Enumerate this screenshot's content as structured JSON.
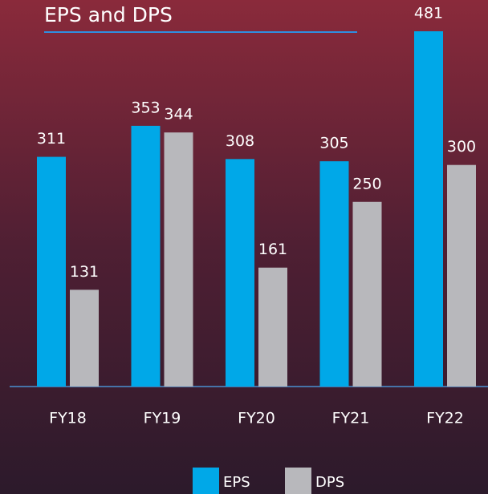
{
  "chart_data": {
    "type": "bar",
    "title": "EPS and DPS",
    "categories": [
      "FY18",
      "FY19",
      "FY20",
      "FY21",
      "FY22"
    ],
    "series": [
      {
        "name": "EPS",
        "color": "#00a8e8",
        "values": [
          311,
          353,
          308,
          305,
          481
        ]
      },
      {
        "name": "DPS",
        "color": "#b8b8bc",
        "values": [
          131,
          344,
          161,
          250,
          300
        ]
      }
    ],
    "ylim": [
      0,
      500
    ]
  }
}
